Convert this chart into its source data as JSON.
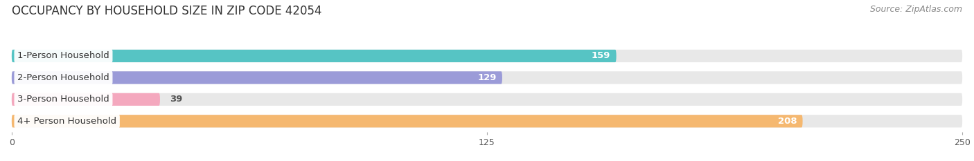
{
  "title": "OCCUPANCY BY HOUSEHOLD SIZE IN ZIP CODE 42054",
  "source": "Source: ZipAtlas.com",
  "categories": [
    "1-Person Household",
    "2-Person Household",
    "3-Person Household",
    "4+ Person Household"
  ],
  "values": [
    159,
    129,
    39,
    208
  ],
  "bar_colors": [
    "#56C4C4",
    "#9B9BD8",
    "#F4A8BE",
    "#F5B870"
  ],
  "xlim": [
    0,
    250
  ],
  "xticks": [
    0,
    125,
    250
  ],
  "background_color": "#ffffff",
  "bar_bg_color": "#e8e8e8",
  "title_fontsize": 12,
  "source_fontsize": 9,
  "label_fontsize": 9.5,
  "value_fontsize": 9.5,
  "value_threshold": 100,
  "value_inside_color": "#ffffff",
  "value_outside_color": "#555555"
}
